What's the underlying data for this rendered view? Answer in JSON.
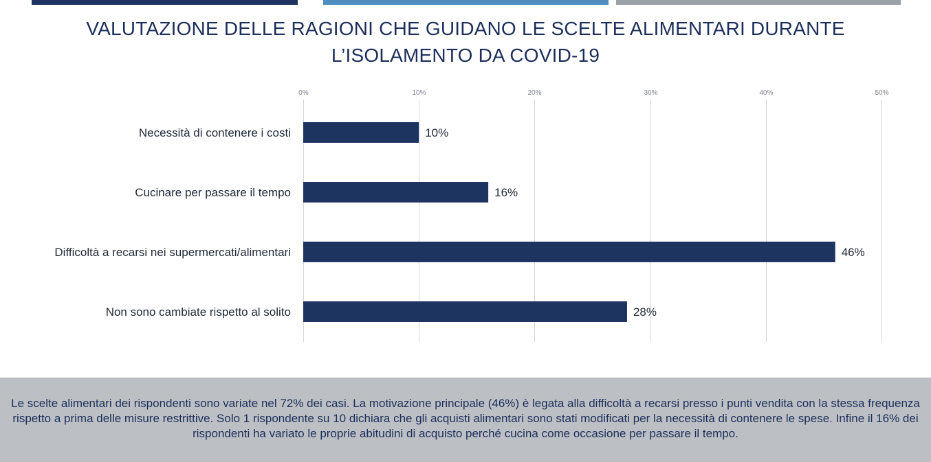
{
  "header": {
    "title_line1": "VALUTAZIONE DELLE RAGIONI CHE GUIDANO LE SCELTE ALIMENTARI DURANTE",
    "title_line2": "L’ISOLAMENTO DA COVID-19"
  },
  "colors": {
    "bar": "#1d3461",
    "band_1": "#1d3461",
    "band_2": "#4e8ec0",
    "band_3": "#9ba1a8",
    "footer_bg": "#bcbfc4"
  },
  "chart_data": {
    "type": "bar",
    "orientation": "horizontal",
    "title": "VALUTAZIONE DELLE RAGIONI CHE GUIDANO LE SCELTE ALIMENTARI DURANTE L’ISOLAMENTO DA COVID-19",
    "categories": [
      "Necessità di contenere i costi",
      "Cucinare per passare il tempo",
      "Difficoltà a recarsi nei supermercati/alimentari",
      "Non sono cambiate rispetto al solito"
    ],
    "values": [
      10,
      16,
      46,
      28
    ],
    "data_labels": [
      "10%",
      "16%",
      "46%",
      "28%"
    ],
    "xlim": [
      0,
      50
    ],
    "x_ticks": [
      0,
      10,
      20,
      30,
      40,
      50
    ],
    "x_tick_labels": [
      "0%",
      "10%",
      "20%",
      "30%",
      "40%",
      "50%"
    ],
    "xlabel": "",
    "ylabel": "",
    "grid": true,
    "tick_position": "top"
  },
  "footer": {
    "text": "Le scelte alimentari dei rispondenti sono variate nel 72% dei casi. La motivazione principale (46%) è legata alla difficoltà a recarsi presso i punti vendita con la stessa frequenza rispetto a prima delle misure restrittive. Solo 1 rispondente su 10 dichiara che gli acquisti alimentari sono stati modificati per la necessità di contenere le spese. Infine il 16% dei rispondenti ha variato le proprie abitudini di acquisto perché cucina come occasione per passare il tempo."
  }
}
